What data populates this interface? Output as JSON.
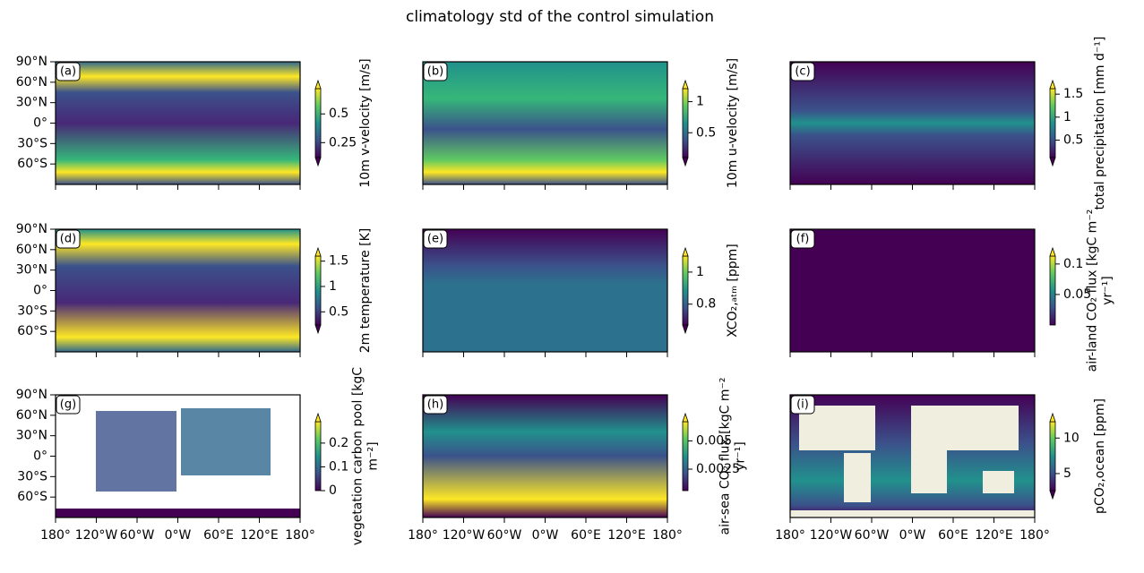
{
  "title": "climatology std of the control simulation",
  "chart_data": [
    {
      "type": "map",
      "panel": "(a)",
      "xlim": [
        -180,
        180
      ],
      "ylim": [
        -90,
        90
      ],
      "xticks": [
        -180,
        -120,
        -60,
        0,
        60,
        120,
        180
      ],
      "yticks": [
        {
          "value": 90,
          "label": "90°N"
        },
        {
          "value": 60,
          "label": "60°N"
        },
        {
          "value": 30,
          "label": "30°N"
        },
        {
          "value": 0,
          "label": "0°"
        },
        {
          "value": -30,
          "label": "30°S"
        },
        {
          "value": -60,
          "label": "60°S"
        }
      ],
      "colorbar": {
        "label": [
          "10m v-velocity [m/s]"
        ],
        "lim": [
          0.12,
          0.72
        ],
        "ticks": [
          0.25,
          0.5
        ],
        "extend": "both"
      }
    },
    {
      "type": "map",
      "panel": "(b)",
      "xlim": [
        -180,
        180
      ],
      "ylim": [
        -90,
        90
      ],
      "xticks": [
        -180,
        -120,
        -60,
        0,
        60,
        120,
        180
      ],
      "colorbar": {
        "label": [
          "10m u-velocity [m/s]"
        ],
        "lim": [
          0.1,
          1.21
        ],
        "ticks": [
          0.5,
          1.0
        ],
        "extend": "both"
      }
    },
    {
      "type": "map",
      "panel": "(c)",
      "xlim": [
        -180,
        180
      ],
      "ylim": [
        -90,
        90
      ],
      "xticks": [
        -180,
        -120,
        -60,
        0,
        60,
        120,
        180
      ],
      "colorbar": {
        "label": [
          "total precipitation [mm d⁻¹]"
        ],
        "lim": [
          0.12,
          1.62
        ],
        "ticks": [
          0.5,
          1.0,
          1.5
        ],
        "extend": "both"
      }
    },
    {
      "type": "map",
      "panel": "(d)",
      "xlim": [
        -180,
        180
      ],
      "ylim": [
        -90,
        90
      ],
      "xticks": [
        -180,
        -120,
        -60,
        0,
        60,
        120,
        180
      ],
      "yticks": [
        {
          "value": 90,
          "label": "90°N"
        },
        {
          "value": 60,
          "label": "60°N"
        },
        {
          "value": 30,
          "label": "30°N"
        },
        {
          "value": 0,
          "label": "0°"
        },
        {
          "value": -30,
          "label": "30°S"
        },
        {
          "value": -60,
          "label": "60°S"
        }
      ],
      "colorbar": {
        "label": [
          "2m temperature [K]"
        ],
        "lim": [
          0.24,
          1.6
        ],
        "ticks": [
          0.5,
          1.0,
          1.5
        ],
        "extend": "both"
      }
    },
    {
      "type": "map",
      "panel": "(e)",
      "xlim": [
        -180,
        180
      ],
      "ylim": [
        -90,
        90
      ],
      "xticks": [
        -180,
        -120,
        -60,
        0,
        60,
        120,
        180
      ],
      "colorbar": {
        "label": [
          "XCO₂,ₐₜₘ [ppm]"
        ],
        "lim": [
          0.67,
          1.1
        ],
        "ticks": [
          0.8,
          1.0
        ],
        "extend": "both"
      }
    },
    {
      "type": "map",
      "panel": "(f)",
      "xlim": [
        -180,
        180
      ],
      "ylim": [
        -90,
        90
      ],
      "xticks": [
        -180,
        -120,
        -60,
        0,
        60,
        120,
        180
      ],
      "colorbar": {
        "label": [
          "air-land CO₂ flux [kgC m⁻²",
          "yr⁻¹]"
        ],
        "lim": [
          0,
          0.113
        ],
        "ticks": [
          0.05,
          0.1
        ],
        "extend": "max"
      }
    },
    {
      "type": "map",
      "panel": "(g)",
      "xlim": [
        -180,
        180
      ],
      "ylim": [
        -90,
        90
      ],
      "xticks": [
        {
          "value": -180,
          "label": "180°"
        },
        {
          "value": -120,
          "label": "120°W"
        },
        {
          "value": -60,
          "label": "60°W"
        },
        {
          "value": 0,
          "label": "0°W"
        },
        {
          "value": 60,
          "label": "60°E"
        },
        {
          "value": 120,
          "label": "120°E"
        },
        {
          "value": 180,
          "label": "180°"
        }
      ],
      "yticks": [
        {
          "value": 90,
          "label": "90°N"
        },
        {
          "value": 60,
          "label": "60°N"
        },
        {
          "value": 30,
          "label": "30°N"
        },
        {
          "value": 0,
          "label": "0°"
        },
        {
          "value": -30,
          "label": "30°S"
        },
        {
          "value": -60,
          "label": "60°S"
        }
      ],
      "colorbar": {
        "label": [
          "vegetation carbon pool [kgC",
          "m⁻²]"
        ],
        "lim": [
          0,
          0.29
        ],
        "ticks": [
          0.0,
          0.1,
          0.2
        ],
        "extend": "max"
      }
    },
    {
      "type": "map",
      "panel": "(h)",
      "xlim": [
        -180,
        180
      ],
      "ylim": [
        -90,
        90
      ],
      "xticks": [
        {
          "value": -180,
          "label": "180°"
        },
        {
          "value": -120,
          "label": "120°W"
        },
        {
          "value": -60,
          "label": "60°W"
        },
        {
          "value": 0,
          "label": "0°W"
        },
        {
          "value": 60,
          "label": "60°E"
        },
        {
          "value": 120,
          "label": "120°E"
        },
        {
          "value": 180,
          "label": "180°"
        }
      ],
      "colorbar": {
        "label": [
          "air-sea CO₂ flux [kgC m⁻²",
          "yr⁻¹]"
        ],
        "lim": [
          0.0006,
          0.0067
        ],
        "ticks": [
          0.0025,
          0.005
        ],
        "extend": "max"
      }
    },
    {
      "type": "map",
      "panel": "(i)",
      "xlim": [
        -180,
        180
      ],
      "ylim": [
        -90,
        90
      ],
      "xticks": [
        {
          "value": -180,
          "label": "180°"
        },
        {
          "value": -120,
          "label": "120°W"
        },
        {
          "value": -60,
          "label": "60°W"
        },
        {
          "value": 0,
          "label": "0°W"
        },
        {
          "value": 60,
          "label": "60°E"
        },
        {
          "value": 120,
          "label": "120°E"
        },
        {
          "value": 180,
          "label": "180°"
        }
      ],
      "colorbar": {
        "label": [
          "pCO₂,ocean [ppm]"
        ],
        "lim": [
          2.6,
          12.3
        ],
        "ticks": [
          5,
          10
        ],
        "extend": "both"
      }
    }
  ]
}
